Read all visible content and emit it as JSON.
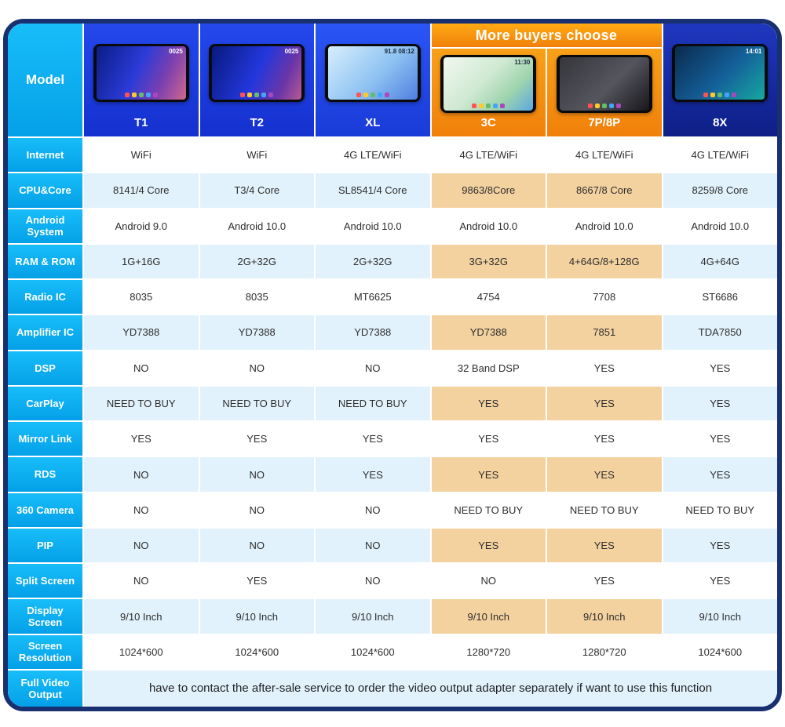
{
  "chart_data": {
    "type": "table",
    "banner": "More buyers choose",
    "corner_label": "Model",
    "models": [
      {
        "name": "T1",
        "highlight": false,
        "screen_text": "0025"
      },
      {
        "name": "T2",
        "highlight": false,
        "screen_text": "0025"
      },
      {
        "name": "XL",
        "highlight": false,
        "screen_text": "91.8  08:12"
      },
      {
        "name": "3C",
        "highlight": true,
        "screen_text": "11:30"
      },
      {
        "name": "7P/8P",
        "highlight": true,
        "screen_text": ""
      },
      {
        "name": "8X",
        "highlight": false,
        "screen_text": "14:01"
      }
    ],
    "rows": [
      {
        "label": "Internet",
        "shaded": false,
        "values": [
          "WiFi",
          "WiFi",
          "4G LTE/WiFi",
          "4G LTE/WiFi",
          "4G LTE/WiFi",
          "4G LTE/WiFi"
        ]
      },
      {
        "label": "CPU&Core",
        "shaded": true,
        "values": [
          "8141/4 Core",
          "T3/4 Core",
          "SL8541/4 Core",
          "9863/8Core",
          "8667/8 Core",
          "8259/8 Core"
        ]
      },
      {
        "label": "Android System",
        "shaded": false,
        "values": [
          "Android 9.0",
          "Android 10.0",
          "Android 10.0",
          "Android 10.0",
          "Android 10.0",
          "Android 10.0"
        ]
      },
      {
        "label": "RAM & ROM",
        "shaded": true,
        "values": [
          "1G+16G",
          "2G+32G",
          "2G+32G",
          "3G+32G",
          "4+64G/8+128G",
          "4G+64G"
        ]
      },
      {
        "label": "Radio IC",
        "shaded": false,
        "values": [
          "8035",
          "8035",
          "MT6625",
          "4754",
          "7708",
          "ST6686"
        ]
      },
      {
        "label": "Amplifier IC",
        "shaded": true,
        "values": [
          "YD7388",
          "YD7388",
          "YD7388",
          "YD7388",
          "7851",
          "TDA7850"
        ]
      },
      {
        "label": "DSP",
        "shaded": false,
        "values": [
          "NO",
          "NO",
          "NO",
          "32 Band DSP",
          "YES",
          "YES"
        ]
      },
      {
        "label": "CarPlay",
        "shaded": true,
        "values": [
          "NEED TO BUY",
          "NEED TO BUY",
          "NEED TO BUY",
          "YES",
          "YES",
          "YES"
        ]
      },
      {
        "label": "Mirror Link",
        "shaded": false,
        "values": [
          "YES",
          "YES",
          "YES",
          "YES",
          "YES",
          "YES"
        ]
      },
      {
        "label": "RDS",
        "shaded": true,
        "values": [
          "NO",
          "NO",
          "YES",
          "YES",
          "YES",
          "YES"
        ]
      },
      {
        "label": "360 Camera",
        "shaded": false,
        "values": [
          "NO",
          "NO",
          "NO",
          "NEED TO BUY",
          "NEED TO BUY",
          "NEED TO BUY"
        ]
      },
      {
        "label": "PIP",
        "shaded": true,
        "values": [
          "NO",
          "NO",
          "NO",
          "YES",
          "YES",
          "YES"
        ]
      },
      {
        "label": "Split Screen",
        "shaded": false,
        "values": [
          "NO",
          "YES",
          "NO",
          "NO",
          "YES",
          "YES"
        ]
      },
      {
        "label": "Display Screen",
        "shaded": true,
        "values": [
          "9/10 Inch",
          "9/10 Inch",
          "9/10 Inch",
          "9/10 Inch",
          "9/10 Inch",
          "9/10 Inch"
        ]
      },
      {
        "label": "Screen Resolution",
        "shaded": false,
        "values": [
          "1024*600",
          "1024*600",
          "1024*600",
          "1280*720",
          "1280*720",
          "1024*600"
        ]
      }
    ],
    "footer_label": "Full Video Output",
    "footer_text": "have to contact the after-sale service to order the video output adapter separately if want to use this function"
  },
  "colors": {
    "frame_navy": "#182f70",
    "label_cyan": "#06a7ee",
    "header_blue": "#1b3ade",
    "accent_orange": "#f68b0e",
    "highlight_tan": "#f4d2a0",
    "row_alt_blue": "#e2f2fc"
  }
}
